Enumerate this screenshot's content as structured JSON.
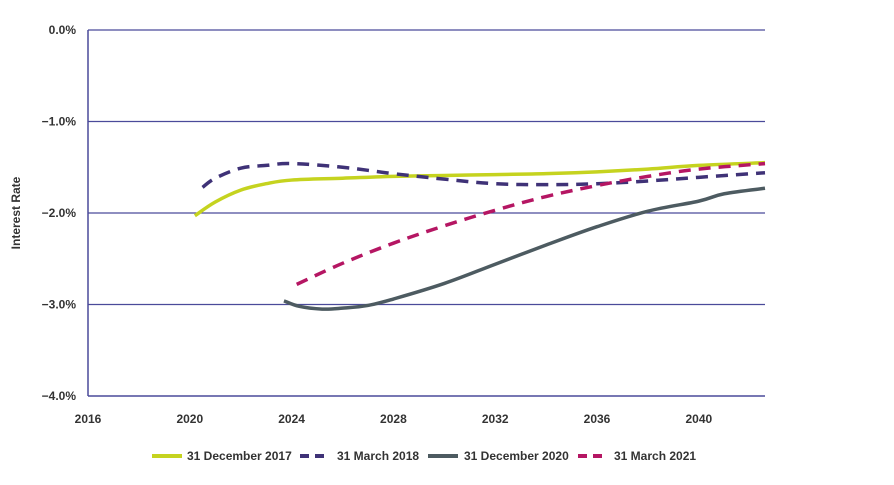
{
  "chart_data": {
    "type": "line",
    "title": "",
    "xlabel": "",
    "ylabel": "Interest Rate",
    "xlim": [
      2016,
      2042.6
    ],
    "ylim": [
      -4.0,
      0.0
    ],
    "x_ticks": [
      2016,
      2020,
      2024,
      2028,
      2032,
      2036,
      2040
    ],
    "x_tick_labels": [
      "2016",
      "2020",
      "2024",
      "2028",
      "2032",
      "2036",
      "2040"
    ],
    "y_ticks": [
      0.0,
      -1.0,
      -2.0,
      -3.0,
      -4.0
    ],
    "y_tick_labels": [
      "0.0%",
      "−1.0%",
      "−2.0%",
      "−3.0%",
      "−4.0%"
    ],
    "grid": "horizontal",
    "legend_position": "bottom",
    "series": [
      {
        "name": "31 December 2017",
        "color": "#c5d31f",
        "style": "solid",
        "x": [
          2020.2,
          2021,
          2022,
          2023,
          2024,
          2026,
          2028,
          2030,
          2032,
          2034,
          2036,
          2038,
          2040,
          2042.6
        ],
        "values": [
          -2.03,
          -1.88,
          -1.75,
          -1.68,
          -1.64,
          -1.62,
          -1.6,
          -1.59,
          -1.58,
          -1.57,
          -1.55,
          -1.52,
          -1.48,
          -1.45
        ]
      },
      {
        "name": "31 March 2018",
        "color": "#3f3277",
        "style": "dashed",
        "x": [
          2020.5,
          2021,
          2022,
          2023,
          2024,
          2026,
          2028,
          2030,
          2032,
          2034,
          2036,
          2038,
          2040,
          2042.6
        ],
        "values": [
          -1.72,
          -1.62,
          -1.51,
          -1.48,
          -1.46,
          -1.5,
          -1.57,
          -1.63,
          -1.68,
          -1.69,
          -1.68,
          -1.65,
          -1.61,
          -1.56
        ]
      },
      {
        "name": "31 December 2020",
        "color": "#4d5b61",
        "style": "solid",
        "x": [
          2023.7,
          2024.3,
          2025.2,
          2026,
          2027,
          2028,
          2030,
          2032,
          2034,
          2036,
          2038,
          2040,
          2041,
          2042.6
        ],
        "values": [
          -2.96,
          -3.02,
          -3.05,
          -3.04,
          -3.01,
          -2.94,
          -2.77,
          -2.56,
          -2.35,
          -2.15,
          -1.98,
          -1.87,
          -1.79,
          -1.73
        ]
      },
      {
        "name": "31 March 2021",
        "color": "#b51663",
        "style": "dashed",
        "x": [
          2024.2,
          2026,
          2028,
          2030,
          2032,
          2034,
          2036,
          2038,
          2040,
          2042.6
        ],
        "values": [
          -2.78,
          -2.55,
          -2.33,
          -2.14,
          -1.97,
          -1.82,
          -1.7,
          -1.6,
          -1.52,
          -1.46
        ]
      }
    ]
  }
}
